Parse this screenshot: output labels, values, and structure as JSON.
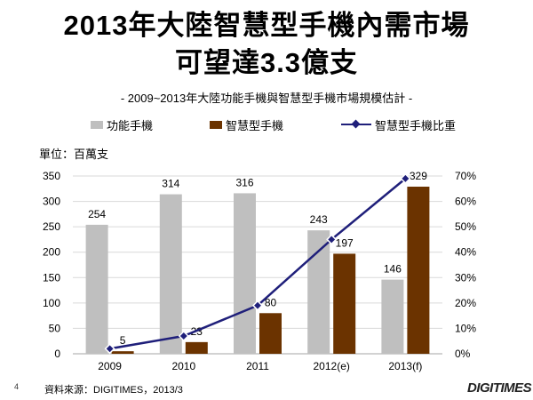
{
  "header": {
    "title_line1": "2013年大陸智慧型手機內需市場",
    "title_line2": "可望達3.3億支",
    "subtitle": "- 2009~2013年大陸功能手機與智慧型手機市場規模估計 -"
  },
  "unit_label": "單位：百萬支",
  "footer": {
    "page_number": "4",
    "source": "資料來源：DIGITIMES，2013/3",
    "logo": "DIGITIMES"
  },
  "colors": {
    "feature": "#bfbfbf",
    "smart": "#6b3300",
    "ratio_line": "#1f1f7a",
    "grid": "#d9d9d9"
  },
  "chart_data": {
    "type": "bar",
    "categories": [
      "2009",
      "2010",
      "2011",
      "2012(e)",
      "2013(f)"
    ],
    "series": [
      {
        "name": "功能手機",
        "type": "bar",
        "axis": "left",
        "values": [
          254,
          314,
          316,
          243,
          146
        ]
      },
      {
        "name": "智慧型手機",
        "type": "bar",
        "axis": "left",
        "values": [
          5,
          23,
          80,
          197,
          329
        ]
      },
      {
        "name": "智慧型手機比重",
        "type": "line",
        "axis": "right",
        "values": [
          2,
          7,
          19,
          45,
          69
        ]
      }
    ],
    "left_axis": {
      "min": 0,
      "max": 350,
      "ticks": [
        "0",
        "50",
        "100",
        "150",
        "200",
        "250",
        "300",
        "350"
      ]
    },
    "right_axis": {
      "min": 0,
      "max": 70,
      "ticks": [
        "0%",
        "10%",
        "20%",
        "30%",
        "40%",
        "50%",
        "60%",
        "70%"
      ]
    },
    "legend_position": "top",
    "grid": true
  }
}
